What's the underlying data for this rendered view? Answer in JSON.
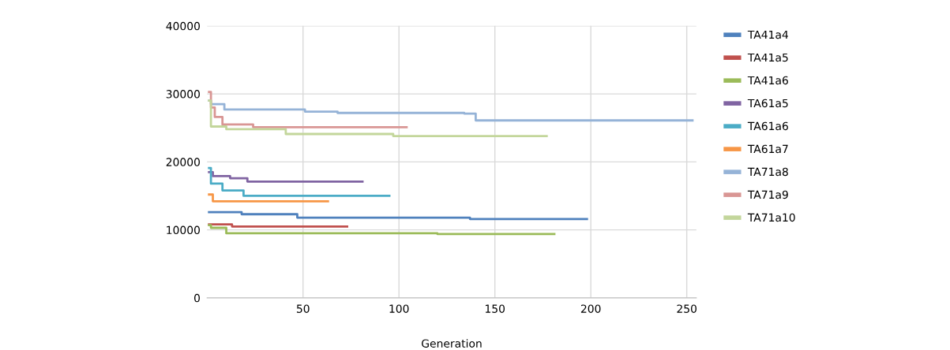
{
  "chart_data": {
    "type": "step",
    "xlabel": "Generation",
    "xlim": [
      0,
      255
    ],
    "xticks": [
      50,
      100,
      150,
      200,
      250
    ],
    "ylim": [
      0,
      40000
    ],
    "yticks": [
      0,
      10000,
      20000,
      30000,
      40000
    ],
    "grid": true,
    "legend": "right",
    "line_style": "solid",
    "marker": "none",
    "series": [
      {
        "name": "TA41a4",
        "color": "#4f81bd",
        "x": [
          1,
          18,
          47,
          137,
          198
        ],
        "values": [
          12600,
          12300,
          11800,
          11600,
          11600
        ]
      },
      {
        "name": "TA41a5",
        "color": "#c0504d",
        "x": [
          1,
          13,
          73
        ],
        "values": [
          10800,
          10500,
          10500
        ]
      },
      {
        "name": "TA41a6",
        "color": "#9bbb59",
        "x": [
          1,
          2,
          10,
          120,
          181
        ],
        "values": [
          10700,
          10300,
          9500,
          9400,
          9400
        ]
      },
      {
        "name": "TA61a5",
        "color": "#8064a2",
        "x": [
          1,
          3,
          12,
          21,
          81
        ],
        "values": [
          18500,
          17900,
          17600,
          17100,
          17100
        ]
      },
      {
        "name": "TA61a6",
        "color": "#4bacc6",
        "x": [
          1,
          2,
          8,
          19,
          95
        ],
        "values": [
          19100,
          16800,
          15800,
          15000,
          15000
        ]
      },
      {
        "name": "TA61a7",
        "color": "#f79646",
        "x": [
          1,
          3,
          63
        ],
        "values": [
          15200,
          14200,
          14200
        ]
      },
      {
        "name": "TA71a8",
        "color": "#95b3d7",
        "x": [
          1,
          2,
          9,
          51,
          68,
          134,
          140,
          253
        ],
        "values": [
          29000,
          28500,
          27700,
          27400,
          27200,
          27100,
          26100,
          26100
        ]
      },
      {
        "name": "TA71a9",
        "color": "#d99694",
        "x": [
          1,
          2,
          4,
          8,
          24,
          104
        ],
        "values": [
          30300,
          28000,
          26600,
          25500,
          25100,
          25100
        ]
      },
      {
        "name": "TA71a10",
        "color": "#c3d69b",
        "x": [
          1,
          2,
          10,
          41,
          97,
          177
        ],
        "values": [
          29000,
          25200,
          24800,
          24100,
          23800,
          23800
        ]
      }
    ]
  }
}
